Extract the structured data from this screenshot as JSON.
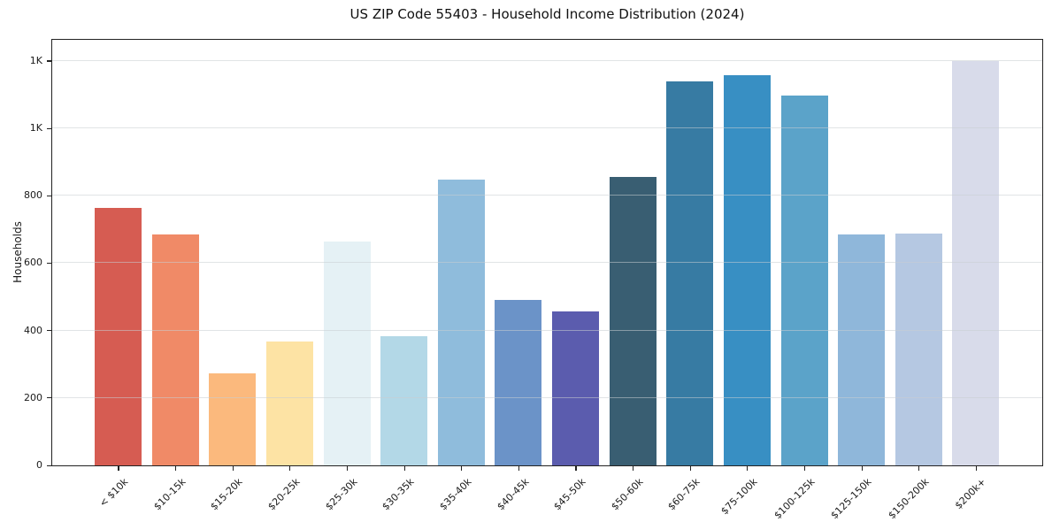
{
  "title": "US ZIP Code 55403 - Household Income Distribution (2024)",
  "chart_data": {
    "type": "bar",
    "title": "US ZIP Code 55403 - Household Income Distribution (2024)",
    "xlabel": "",
    "ylabel": "Households",
    "ylim": [
      0,
      1260
    ],
    "grid": "horizontal",
    "legend": "none",
    "background": "#ffffff",
    "categories": [
      "< $10k",
      "$10-15k",
      "$15-20k",
      "$20-25k",
      "$25-30k",
      "$30-35k",
      "$35-40k",
      "$40-45k",
      "$45-50k",
      "$50-60k",
      "$60-75k",
      "$75-100k",
      "$100-125k",
      "$125-150k",
      "$150-200k",
      "$200k+"
    ],
    "values": [
      765,
      686,
      273,
      368,
      665,
      384,
      848,
      490,
      456,
      857,
      1138,
      1157,
      1098,
      684,
      689,
      1200
    ],
    "bar_colors": [
      "#d65c52",
      "#f08a67",
      "#fbb97d",
      "#fde3a4",
      "#e5f1f5",
      "#b3d8e7",
      "#8fbcdc",
      "#6b93c8",
      "#5b5cae",
      "#395e72",
      "#377ba3",
      "#388fc3",
      "#5ba3c9",
      "#8fb7da",
      "#b5c8e2",
      "#d8dbea"
    ],
    "yticks": [
      {
        "value": 0,
        "label": "0"
      },
      {
        "value": 200,
        "label": "200"
      },
      {
        "value": 400,
        "label": "400"
      },
      {
        "value": 600,
        "label": "600"
      },
      {
        "value": 800,
        "label": "800"
      },
      {
        "value": 1000,
        "label": "1K"
      },
      {
        "value": 1200,
        "label": "1K"
      }
    ],
    "axis_color": "#222222",
    "grid_color": "#e6e9eb",
    "text_color": "#1a1a1a"
  }
}
